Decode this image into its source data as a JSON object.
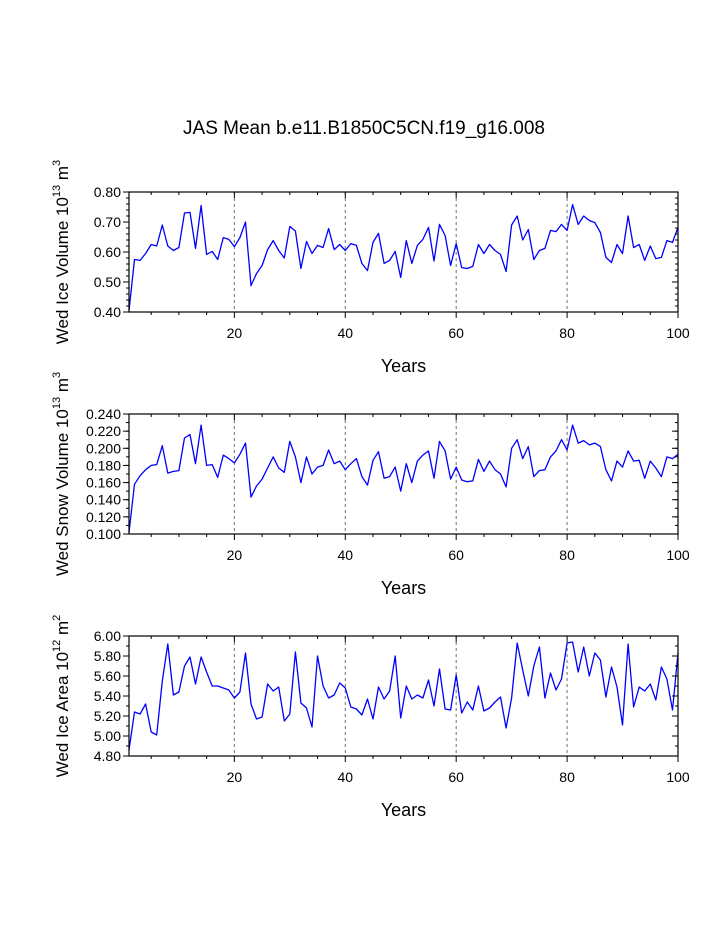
{
  "chart_data": {
    "title": "JAS Mean b.e11.B1850C5CN.f19_g16.008",
    "panels": [
      {
        "type": "line",
        "ylabel": "Wed Ice Volume 10",
        "ylabel_exp": "13",
        "ylabel_unit": " m",
        "ylabel_unit_exp": "3",
        "xlabel": "Years",
        "xlim": [
          1,
          100
        ],
        "ylim": [
          0.4,
          0.8
        ],
        "xticks": [
          20,
          40,
          60,
          80,
          100
        ],
        "xtick_labels": [
          "20",
          "40",
          "60",
          "80",
          "100"
        ],
        "yticks": [
          0.4,
          0.5,
          0.6,
          0.7,
          0.8
        ],
        "ytick_labels": [
          "0.40",
          "0.50",
          "0.60",
          "0.70",
          "0.80"
        ],
        "yminor": 0.02,
        "grid_x": [
          20,
          40,
          60,
          80
        ],
        "line_color": "#0000ff",
        "values": [
          0.405,
          0.575,
          0.572,
          0.595,
          0.625,
          0.62,
          0.69,
          0.62,
          0.605,
          0.615,
          0.73,
          0.732,
          0.612,
          0.755,
          0.592,
          0.602,
          0.575,
          0.648,
          0.642,
          0.618,
          0.648,
          0.7,
          0.488,
          0.528,
          0.555,
          0.608,
          0.638,
          0.605,
          0.58,
          0.685,
          0.67,
          0.545,
          0.635,
          0.595,
          0.622,
          0.615,
          0.678,
          0.608,
          0.625,
          0.605,
          0.628,
          0.622,
          0.562,
          0.538,
          0.632,
          0.662,
          0.562,
          0.572,
          0.602,
          0.515,
          0.638,
          0.562,
          0.622,
          0.642,
          0.682,
          0.57,
          0.692,
          0.655,
          0.555,
          0.628,
          0.548,
          0.545,
          0.552,
          0.625,
          0.595,
          0.625,
          0.605,
          0.592,
          0.535,
          0.69,
          0.72,
          0.64,
          0.675,
          0.575,
          0.605,
          0.612,
          0.672,
          0.668,
          0.692,
          0.672,
          0.758,
          0.692,
          0.72,
          0.705,
          0.698,
          0.665,
          0.582,
          0.565,
          0.625,
          0.595,
          0.72,
          0.615,
          0.625,
          0.572,
          0.62,
          0.578,
          0.582,
          0.638,
          0.632,
          0.682
        ]
      },
      {
        "type": "line",
        "ylabel": "Wed Snow Volume 10",
        "ylabel_exp": "13",
        "ylabel_unit": " m",
        "ylabel_unit_exp": "3",
        "xlabel": "Years",
        "xlim": [
          1,
          100
        ],
        "ylim": [
          0.1,
          0.24
        ],
        "xticks": [
          20,
          40,
          60,
          80,
          100
        ],
        "xtick_labels": [
          "20",
          "40",
          "60",
          "80",
          "100"
        ],
        "yticks": [
          0.1,
          0.12,
          0.14,
          0.16,
          0.18,
          0.2,
          0.22,
          0.24
        ],
        "ytick_labels": [
          "0.100",
          "0.120",
          "0.140",
          "0.160",
          "0.180",
          "0.200",
          "0.220",
          "0.240"
        ],
        "yminor": 0.01,
        "grid_x": [
          20,
          40,
          60,
          80
        ],
        "line_color": "#0000ff",
        "values": [
          0.102,
          0.158,
          0.168,
          0.175,
          0.18,
          0.181,
          0.203,
          0.171,
          0.173,
          0.174,
          0.212,
          0.216,
          0.182,
          0.227,
          0.18,
          0.181,
          0.166,
          0.192,
          0.188,
          0.183,
          0.193,
          0.206,
          0.143,
          0.156,
          0.164,
          0.177,
          0.19,
          0.177,
          0.172,
          0.208,
          0.19,
          0.16,
          0.19,
          0.17,
          0.178,
          0.18,
          0.198,
          0.182,
          0.185,
          0.175,
          0.182,
          0.188,
          0.167,
          0.157,
          0.186,
          0.196,
          0.165,
          0.167,
          0.178,
          0.15,
          0.182,
          0.16,
          0.185,
          0.192,
          0.197,
          0.165,
          0.208,
          0.197,
          0.164,
          0.178,
          0.163,
          0.161,
          0.162,
          0.187,
          0.173,
          0.185,
          0.175,
          0.17,
          0.155,
          0.2,
          0.21,
          0.188,
          0.202,
          0.167,
          0.174,
          0.175,
          0.19,
          0.197,
          0.21,
          0.198,
          0.227,
          0.206,
          0.209,
          0.204,
          0.206,
          0.202,
          0.175,
          0.162,
          0.185,
          0.178,
          0.197,
          0.185,
          0.186,
          0.165,
          0.185,
          0.177,
          0.167,
          0.19,
          0.188,
          0.193
        ]
      },
      {
        "type": "line",
        "ylabel": "Wed Ice Area 10",
        "ylabel_exp": "12",
        "ylabel_unit": " m",
        "ylabel_unit_exp": "2",
        "xlabel": "Years",
        "xlim": [
          1,
          100
        ],
        "ylim": [
          4.8,
          6.0
        ],
        "xticks": [
          20,
          40,
          60,
          80,
          100
        ],
        "xtick_labels": [
          "20",
          "40",
          "60",
          "80",
          "100"
        ],
        "yticks": [
          4.8,
          5.0,
          5.2,
          5.4,
          5.6,
          5.8,
          6.0
        ],
        "ytick_labels": [
          "4.80",
          "5.00",
          "5.20",
          "5.40",
          "5.60",
          "5.80",
          "6.00"
        ],
        "yminor": 0.1,
        "grid_x": [
          20,
          40,
          60,
          80
        ],
        "line_color": "#0000ff",
        "values": [
          4.86,
          5.24,
          5.22,
          5.32,
          5.04,
          5.01,
          5.55,
          5.92,
          5.41,
          5.44,
          5.7,
          5.79,
          5.52,
          5.79,
          5.64,
          5.5,
          5.5,
          5.48,
          5.46,
          5.38,
          5.44,
          5.83,
          5.32,
          5.17,
          5.19,
          5.52,
          5.45,
          5.49,
          5.15,
          5.22,
          5.84,
          5.33,
          5.28,
          5.09,
          5.8,
          5.5,
          5.38,
          5.41,
          5.53,
          5.48,
          5.29,
          5.27,
          5.21,
          5.37,
          5.17,
          5.49,
          5.37,
          5.45,
          5.8,
          5.18,
          5.5,
          5.37,
          5.41,
          5.38,
          5.56,
          5.3,
          5.67,
          5.27,
          5.26,
          5.61,
          5.23,
          5.34,
          5.26,
          5.5,
          5.25,
          5.28,
          5.34,
          5.39,
          5.08,
          5.38,
          5.93,
          5.66,
          5.4,
          5.7,
          5.89,
          5.38,
          5.63,
          5.46,
          5.57,
          5.93,
          5.94,
          5.64,
          5.89,
          5.6,
          5.83,
          5.76,
          5.39,
          5.69,
          5.49,
          5.11,
          5.92,
          5.29,
          5.49,
          5.45,
          5.52,
          5.36,
          5.69,
          5.57,
          5.26,
          5.83
        ]
      }
    ]
  }
}
